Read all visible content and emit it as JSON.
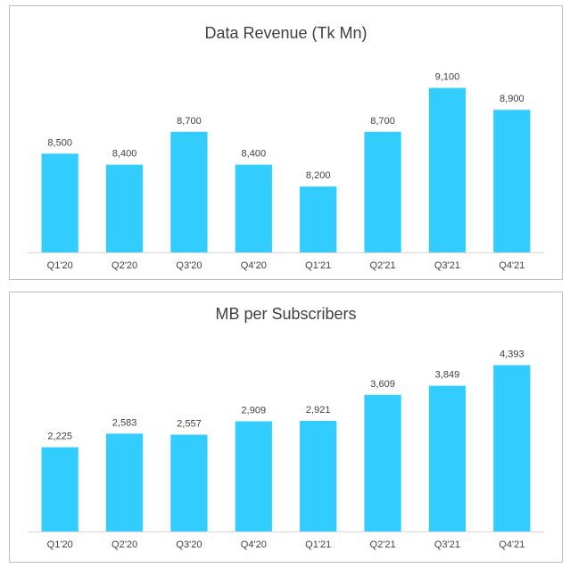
{
  "chart_data": [
    {
      "type": "bar",
      "title": "Data Revenue (Tk Mn)",
      "categories": [
        "Q1'20",
        "Q2'20",
        "Q3'20",
        "Q4'20",
        "Q1'21",
        "Q2'21",
        "Q3'21",
        "Q4'21"
      ],
      "values": [
        8500,
        8400,
        8700,
        8400,
        8200,
        8700,
        9100,
        8900
      ],
      "labels": [
        "8,500",
        "8,400",
        "8,700",
        "8,400",
        "8,200",
        "8,700",
        "9,100",
        "8,900"
      ],
      "ylim": [
        7600,
        9300
      ],
      "bar_color": "#33ccff",
      "grid": false,
      "legend": "none"
    },
    {
      "type": "bar",
      "title": "MB per Subscribers",
      "categories": [
        "Q1'20",
        "Q2'20",
        "Q3'20",
        "Q4'20",
        "Q1'21",
        "Q2'21",
        "Q3'21",
        "Q4'21"
      ],
      "values": [
        2225,
        2583,
        2557,
        2909,
        2921,
        3609,
        3849,
        4393
      ],
      "labels": [
        "2,225",
        "2,583",
        "2,557",
        "2,909",
        "2,921",
        "3,609",
        "3,849",
        "4,393"
      ],
      "ylim": [
        0,
        4900
      ],
      "bar_color": "#33ccff",
      "grid": false,
      "legend": "none"
    }
  ]
}
